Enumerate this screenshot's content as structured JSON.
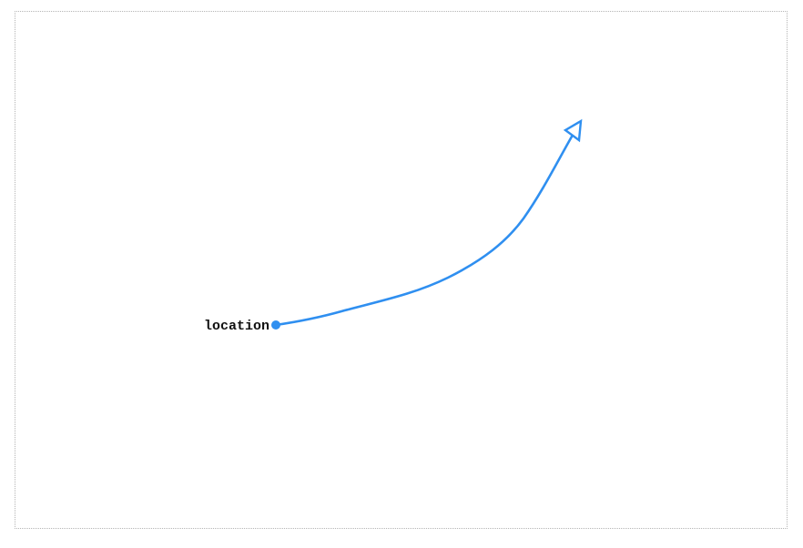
{
  "diagram": {
    "start_label": "location",
    "stroke_color": "#2f8ff0",
    "label_color": "#111111",
    "frame_color": "#b5b5b5",
    "start_marker": "filled-circle",
    "end_marker": "hollow-triangle-arrowhead"
  }
}
